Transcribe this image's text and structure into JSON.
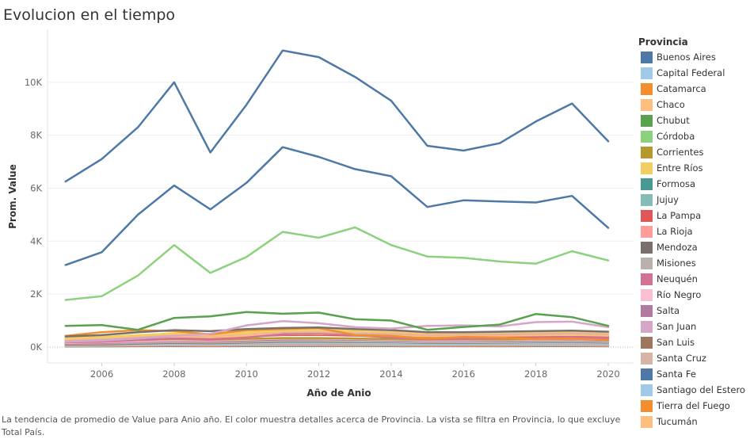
{
  "title": "Evolucion en el tiempo",
  "caption": "La tendencia de promedio de Value para Anio año.  El color muestra detalles acerca de Provincia. La vista se filtra en Provincia, lo que excluye Total País.",
  "legend": {
    "title": "Provincia"
  },
  "chart_data": {
    "type": "line",
    "title": "Evolucion en el tiempo",
    "xlabel": "Año de Anio",
    "ylabel": "Prom. Value",
    "x": [
      2005,
      2006,
      2007,
      2008,
      2009,
      2010,
      2011,
      2012,
      2013,
      2014,
      2015,
      2016,
      2017,
      2018,
      2019,
      2020
    ],
    "xticks": [
      2006,
      2008,
      2010,
      2012,
      2014,
      2016,
      2018,
      2020
    ],
    "xtick_labels": [
      "2006",
      "2008",
      "2010",
      "2012",
      "2014",
      "2016",
      "2018",
      "2020"
    ],
    "yticks": [
      0,
      2000,
      4000,
      6000,
      8000,
      10000
    ],
    "ytick_labels": [
      "0K",
      "2K",
      "4K",
      "6K",
      "8K",
      "10K"
    ],
    "xlim": [
      2004.5,
      2020.7
    ],
    "ylim": [
      -600,
      12000
    ],
    "grid": "horizontal",
    "zero_line": "dotted",
    "legend_position": "right",
    "series": [
      {
        "name": "Buenos Aires",
        "color": "#4e79a7",
        "values": [
          6250,
          7100,
          8300,
          10000,
          7350,
          9150,
          11200,
          10950,
          10200,
          9300,
          7600,
          7420,
          7700,
          8520,
          9200,
          7770
        ]
      },
      {
        "name": "Capital Federal",
        "color": "#a0cbe8",
        "values": [
          150,
          170,
          200,
          260,
          220,
          260,
          300,
          300,
          270,
          260,
          220,
          230,
          240,
          250,
          270,
          230
        ]
      },
      {
        "name": "Catamarca",
        "color": "#f28e2b",
        "values": [
          30,
          40,
          50,
          60,
          50,
          60,
          70,
          70,
          60,
          60,
          50,
          50,
          50,
          60,
          60,
          50
        ]
      },
      {
        "name": "Chaco",
        "color": "#ffbe7d",
        "values": [
          300,
          350,
          420,
          500,
          440,
          520,
          600,
          620,
          580,
          560,
          500,
          520,
          540,
          560,
          580,
          540
        ]
      },
      {
        "name": "Chubut",
        "color": "#59a14f",
        "values": [
          800,
          830,
          650,
          1100,
          1160,
          1320,
          1260,
          1300,
          1050,
          1000,
          650,
          760,
          850,
          1250,
          1130,
          800
        ]
      },
      {
        "name": "Córdoba",
        "color": "#8cd17d",
        "values": [
          1780,
          1920,
          2700,
          3850,
          2800,
          3400,
          4350,
          4130,
          4520,
          3850,
          3420,
          3370,
          3230,
          3150,
          3620,
          3270
        ]
      },
      {
        "name": "Corrientes",
        "color": "#b6992d",
        "values": [
          200,
          220,
          260,
          300,
          270,
          310,
          340,
          340,
          320,
          300,
          280,
          290,
          290,
          300,
          310,
          290
        ]
      },
      {
        "name": "Entre Ríos",
        "color": "#f1ce63",
        "values": [
          350,
          380,
          450,
          520,
          470,
          560,
          640,
          660,
          620,
          600,
          540,
          560,
          570,
          580,
          600,
          570
        ]
      },
      {
        "name": "Formosa",
        "color": "#499894",
        "values": [
          20,
          25,
          30,
          35,
          30,
          35,
          40,
          40,
          40,
          35,
          30,
          30,
          30,
          35,
          35,
          30
        ]
      },
      {
        "name": "Jujuy",
        "color": "#86bcb6",
        "values": [
          60,
          70,
          90,
          110,
          100,
          110,
          130,
          130,
          120,
          110,
          100,
          100,
          110,
          110,
          120,
          110
        ]
      },
      {
        "name": "La Pampa",
        "color": "#e15759",
        "values": [
          250,
          280,
          330,
          380,
          340,
          400,
          450,
          460,
          430,
          410,
          370,
          380,
          390,
          400,
          420,
          390
        ]
      },
      {
        "name": "La Rioja",
        "color": "#ff9d9a",
        "values": [
          40,
          50,
          60,
          70,
          60,
          70,
          80,
          80,
          80,
          70,
          60,
          60,
          70,
          70,
          70,
          60
        ]
      },
      {
        "name": "Mendoza",
        "color": "#79706e",
        "values": [
          400,
          450,
          560,
          640,
          600,
          680,
          720,
          740,
          680,
          640,
          560,
          560,
          580,
          600,
          620,
          580
        ]
      },
      {
        "name": "Misiones",
        "color": "#bab0ac",
        "values": [
          120,
          130,
          160,
          190,
          170,
          200,
          230,
          230,
          210,
          200,
          180,
          180,
          190,
          200,
          210,
          190
        ]
      },
      {
        "name": "Neuquén",
        "color": "#d37295",
        "values": [
          180,
          200,
          260,
          320,
          280,
          360,
          480,
          520,
          440,
          360,
          300,
          310,
          330,
          340,
          380,
          340
        ]
      },
      {
        "name": "Río Negro",
        "color": "#fabfd2",
        "values": [
          160,
          180,
          220,
          260,
          240,
          280,
          320,
          320,
          300,
          280,
          250,
          260,
          270,
          280,
          290,
          270
        ]
      },
      {
        "name": "Salta",
        "color": "#b07aa1",
        "values": [
          140,
          160,
          200,
          240,
          210,
          250,
          290,
          300,
          280,
          260,
          230,
          240,
          250,
          260,
          270,
          250
        ]
      },
      {
        "name": "San Juan",
        "color": "#d4a6c8",
        "values": [
          200,
          240,
          320,
          420,
          500,
          820,
          980,
          900,
          750,
          700,
          800,
          820,
          780,
          940,
          960,
          750
        ]
      },
      {
        "name": "San Luis",
        "color": "#9d7660",
        "values": [
          90,
          100,
          130,
          160,
          140,
          170,
          200,
          200,
          190,
          180,
          160,
          160,
          170,
          180,
          190,
          170
        ]
      },
      {
        "name": "Santa Cruz",
        "color": "#d7b5a6",
        "values": [
          250,
          300,
          380,
          450,
          420,
          500,
          560,
          560,
          520,
          500,
          460,
          470,
          480,
          500,
          520,
          490
        ]
      },
      {
        "name": "Santa Fe",
        "color": "#4e79a7",
        "values": [
          3100,
          3580,
          5000,
          6100,
          5200,
          6200,
          7550,
          7180,
          6720,
          6450,
          5290,
          5540,
          5500,
          5460,
          5710,
          4500
        ]
      },
      {
        "name": "Santiago del Estero",
        "color": "#a0cbe8",
        "values": [
          70,
          80,
          100,
          120,
          110,
          130,
          150,
          150,
          140,
          130,
          120,
          120,
          130,
          130,
          140,
          130
        ]
      },
      {
        "name": "Tierra del Fuego",
        "color": "#f28e2b",
        "values": [
          420,
          560,
          640,
          600,
          480,
          640,
          680,
          720,
          450,
          420,
          320,
          380,
          360,
          300,
          320,
          260
        ]
      },
      {
        "name": "Tucumán",
        "color": "#ffbe7d",
        "values": [
          260,
          290,
          340,
          400,
          370,
          430,
          480,
          500,
          470,
          450,
          410,
          420,
          430,
          440,
          460,
          430
        ]
      }
    ]
  }
}
